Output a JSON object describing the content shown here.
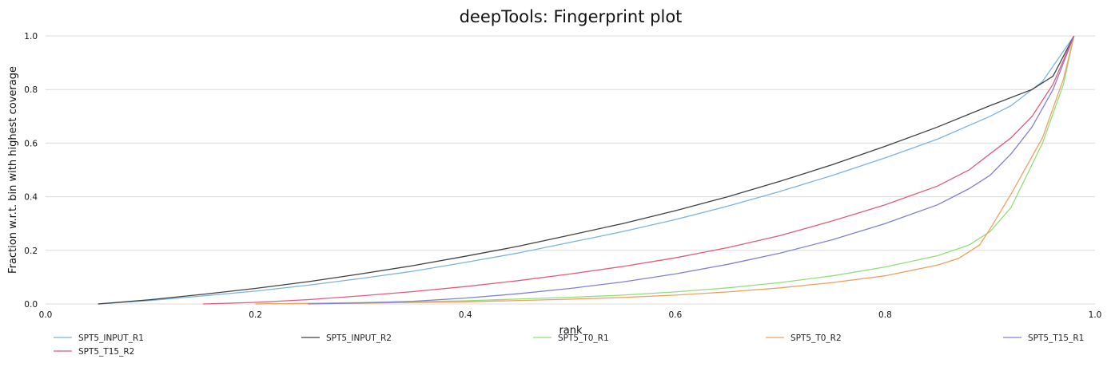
{
  "chart_data": {
    "type": "line",
    "title": "deepTools: Fingerprint plot",
    "xlabel": "rank",
    "ylabel": "Fraction w.r.t. bin with highest coverage",
    "xlim": [
      0,
      1
    ],
    "ylim": [
      0,
      1
    ],
    "x_ticks": [
      "0.0",
      "0.2",
      "0.4",
      "0.6",
      "0.8",
      "1.0"
    ],
    "y_ticks": [
      "0.0",
      "0.2",
      "0.4",
      "0.6",
      "0.8",
      "1.0"
    ],
    "grid": "horizontal",
    "legend": "bottom",
    "series": [
      {
        "name": "SPT5_INPUT_R1",
        "color": "#7ab3e0",
        "points": [
          [
            0.05,
            0
          ],
          [
            0.1,
            0.013
          ],
          [
            0.15,
            0.03
          ],
          [
            0.2,
            0.048
          ],
          [
            0.25,
            0.07
          ],
          [
            0.3,
            0.095
          ],
          [
            0.35,
            0.122
          ],
          [
            0.4,
            0.155
          ],
          [
            0.45,
            0.19
          ],
          [
            0.5,
            0.23
          ],
          [
            0.55,
            0.27
          ],
          [
            0.6,
            0.315
          ],
          [
            0.65,
            0.365
          ],
          [
            0.7,
            0.42
          ],
          [
            0.75,
            0.48
          ],
          [
            0.8,
            0.545
          ],
          [
            0.85,
            0.615
          ],
          [
            0.9,
            0.7
          ],
          [
            0.92,
            0.74
          ],
          [
            0.95,
            0.83
          ],
          [
            0.98,
            1.0
          ]
        ]
      },
      {
        "name": "SPT5_INPUT_R2",
        "color": "#404040",
        "points": [
          [
            0.05,
            0
          ],
          [
            0.1,
            0.016
          ],
          [
            0.15,
            0.036
          ],
          [
            0.2,
            0.058
          ],
          [
            0.25,
            0.083
          ],
          [
            0.3,
            0.112
          ],
          [
            0.35,
            0.143
          ],
          [
            0.4,
            0.178
          ],
          [
            0.45,
            0.215
          ],
          [
            0.5,
            0.257
          ],
          [
            0.55,
            0.3
          ],
          [
            0.6,
            0.348
          ],
          [
            0.65,
            0.4
          ],
          [
            0.7,
            0.458
          ],
          [
            0.75,
            0.52
          ],
          [
            0.8,
            0.588
          ],
          [
            0.85,
            0.66
          ],
          [
            0.9,
            0.74
          ],
          [
            0.94,
            0.8
          ],
          [
            0.96,
            0.85
          ],
          [
            0.98,
            1.0
          ]
        ]
      },
      {
        "name": "SPT5_T0_R1",
        "color": "#8fe07a",
        "points": [
          [
            0.2,
            0
          ],
          [
            0.3,
            0.005
          ],
          [
            0.4,
            0.012
          ],
          [
            0.5,
            0.025
          ],
          [
            0.55,
            0.033
          ],
          [
            0.6,
            0.045
          ],
          [
            0.65,
            0.06
          ],
          [
            0.7,
            0.08
          ],
          [
            0.75,
            0.105
          ],
          [
            0.8,
            0.138
          ],
          [
            0.85,
            0.18
          ],
          [
            0.88,
            0.22
          ],
          [
            0.9,
            0.27
          ],
          [
            0.92,
            0.36
          ],
          [
            0.95,
            0.6
          ],
          [
            0.97,
            0.82
          ],
          [
            0.98,
            1.0
          ]
        ]
      },
      {
        "name": "SPT5_T0_R2",
        "color": "#f0a060",
        "points": [
          [
            0.2,
            0
          ],
          [
            0.3,
            0.003
          ],
          [
            0.4,
            0.008
          ],
          [
            0.5,
            0.018
          ],
          [
            0.55,
            0.024
          ],
          [
            0.6,
            0.033
          ],
          [
            0.65,
            0.045
          ],
          [
            0.7,
            0.06
          ],
          [
            0.75,
            0.08
          ],
          [
            0.8,
            0.105
          ],
          [
            0.85,
            0.145
          ],
          [
            0.87,
            0.17
          ],
          [
            0.89,
            0.22
          ],
          [
            0.9,
            0.28
          ],
          [
            0.92,
            0.41
          ],
          [
            0.95,
            0.62
          ],
          [
            0.97,
            0.84
          ],
          [
            0.98,
            1.0
          ]
        ]
      },
      {
        "name": "SPT5_T15_R1",
        "color": "#8080d8",
        "points": [
          [
            0.25,
            0
          ],
          [
            0.3,
            0.004
          ],
          [
            0.35,
            0.01
          ],
          [
            0.4,
            0.022
          ],
          [
            0.45,
            0.038
          ],
          [
            0.5,
            0.058
          ],
          [
            0.55,
            0.082
          ],
          [
            0.6,
            0.112
          ],
          [
            0.65,
            0.148
          ],
          [
            0.7,
            0.19
          ],
          [
            0.75,
            0.24
          ],
          [
            0.8,
            0.3
          ],
          [
            0.85,
            0.37
          ],
          [
            0.88,
            0.43
          ],
          [
            0.9,
            0.48
          ],
          [
            0.92,
            0.56
          ],
          [
            0.94,
            0.66
          ],
          [
            0.96,
            0.8
          ],
          [
            0.98,
            1.0
          ]
        ]
      },
      {
        "name": "SPT5_T15_R2",
        "color": "#e8587a",
        "points": [
          [
            0.15,
            0
          ],
          [
            0.2,
            0.006
          ],
          [
            0.25,
            0.016
          ],
          [
            0.3,
            0.03
          ],
          [
            0.35,
            0.046
          ],
          [
            0.4,
            0.065
          ],
          [
            0.45,
            0.087
          ],
          [
            0.5,
            0.112
          ],
          [
            0.55,
            0.14
          ],
          [
            0.6,
            0.172
          ],
          [
            0.65,
            0.21
          ],
          [
            0.7,
            0.255
          ],
          [
            0.75,
            0.31
          ],
          [
            0.8,
            0.37
          ],
          [
            0.85,
            0.44
          ],
          [
            0.88,
            0.5
          ],
          [
            0.9,
            0.56
          ],
          [
            0.92,
            0.62
          ],
          [
            0.94,
            0.7
          ],
          [
            0.96,
            0.82
          ],
          [
            0.98,
            1.0
          ]
        ]
      }
    ]
  }
}
